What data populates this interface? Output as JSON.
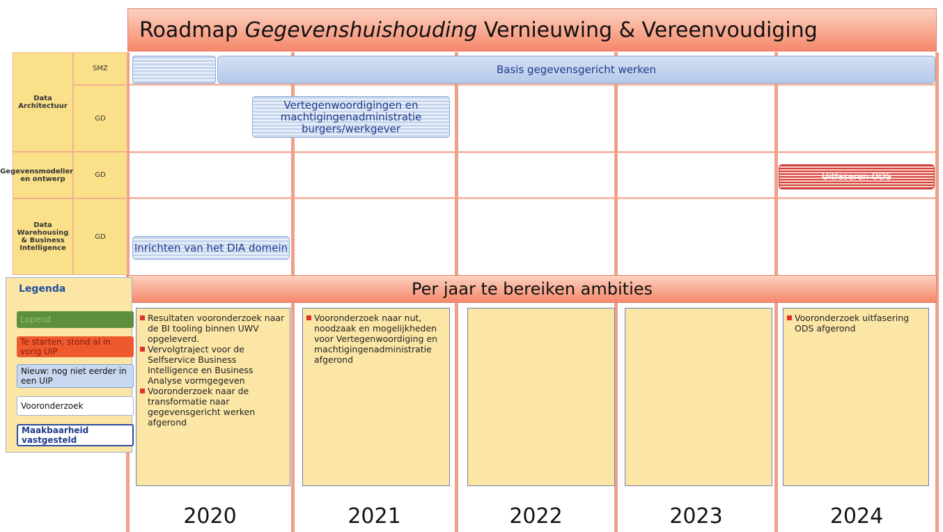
{
  "title": {
    "lead": "Roadmap ",
    "italic": "Gegevenshuishouding",
    "rest": " Vernieuwing & Vereenvoudiging"
  },
  "rows": [
    {
      "group": "Data Architectuur",
      "orgs": [
        "SMZ",
        "GD"
      ]
    },
    {
      "group": "Gegevensmodellering en ontwerp",
      "orgs": [
        "GD"
      ]
    },
    {
      "group": "Data Warehousing & Business Intelligence",
      "orgs": [
        "GD"
      ]
    }
  ],
  "bars": [
    "Basis gegevensgericht werken",
    "Vertegenwoordigingen en machtigingenadministratie burgers/werkgever",
    "Uitfaseren ODS",
    "Inrichten van het DIA domein"
  ],
  "ambitions_title": "Per jaar te bereiken ambities",
  "ambitions": [
    [
      "Resultaten vooronderzoek naar de BI tooling binnen UWV opgeleverd.",
      "Vervolgtraject voor de Selfservice Business Intelligence en Business Analyse vormgegeven",
      "Vooronderzoek naar de transformatie naar gegevensgericht werken afgerond"
    ],
    [
      "Vooronderzoek naar nut, noodzaak en mogelijkheden voor Vertegenwoordiging en machtigingenadministratie afgerond"
    ],
    [],
    [],
    [
      "Vooronderzoek uitfasering ODS afgerond"
    ]
  ],
  "years": [
    "2020",
    "2021",
    "2022",
    "2023",
    "2024"
  ],
  "legend": {
    "title": "Legenda",
    "items": [
      "Lopend",
      "Te starten, stond al in vorig UIP",
      "Nieuw: nog niet eerder in een UIP",
      "Vooronderzoek",
      "Maakbaarheid vastgesteld"
    ]
  }
}
